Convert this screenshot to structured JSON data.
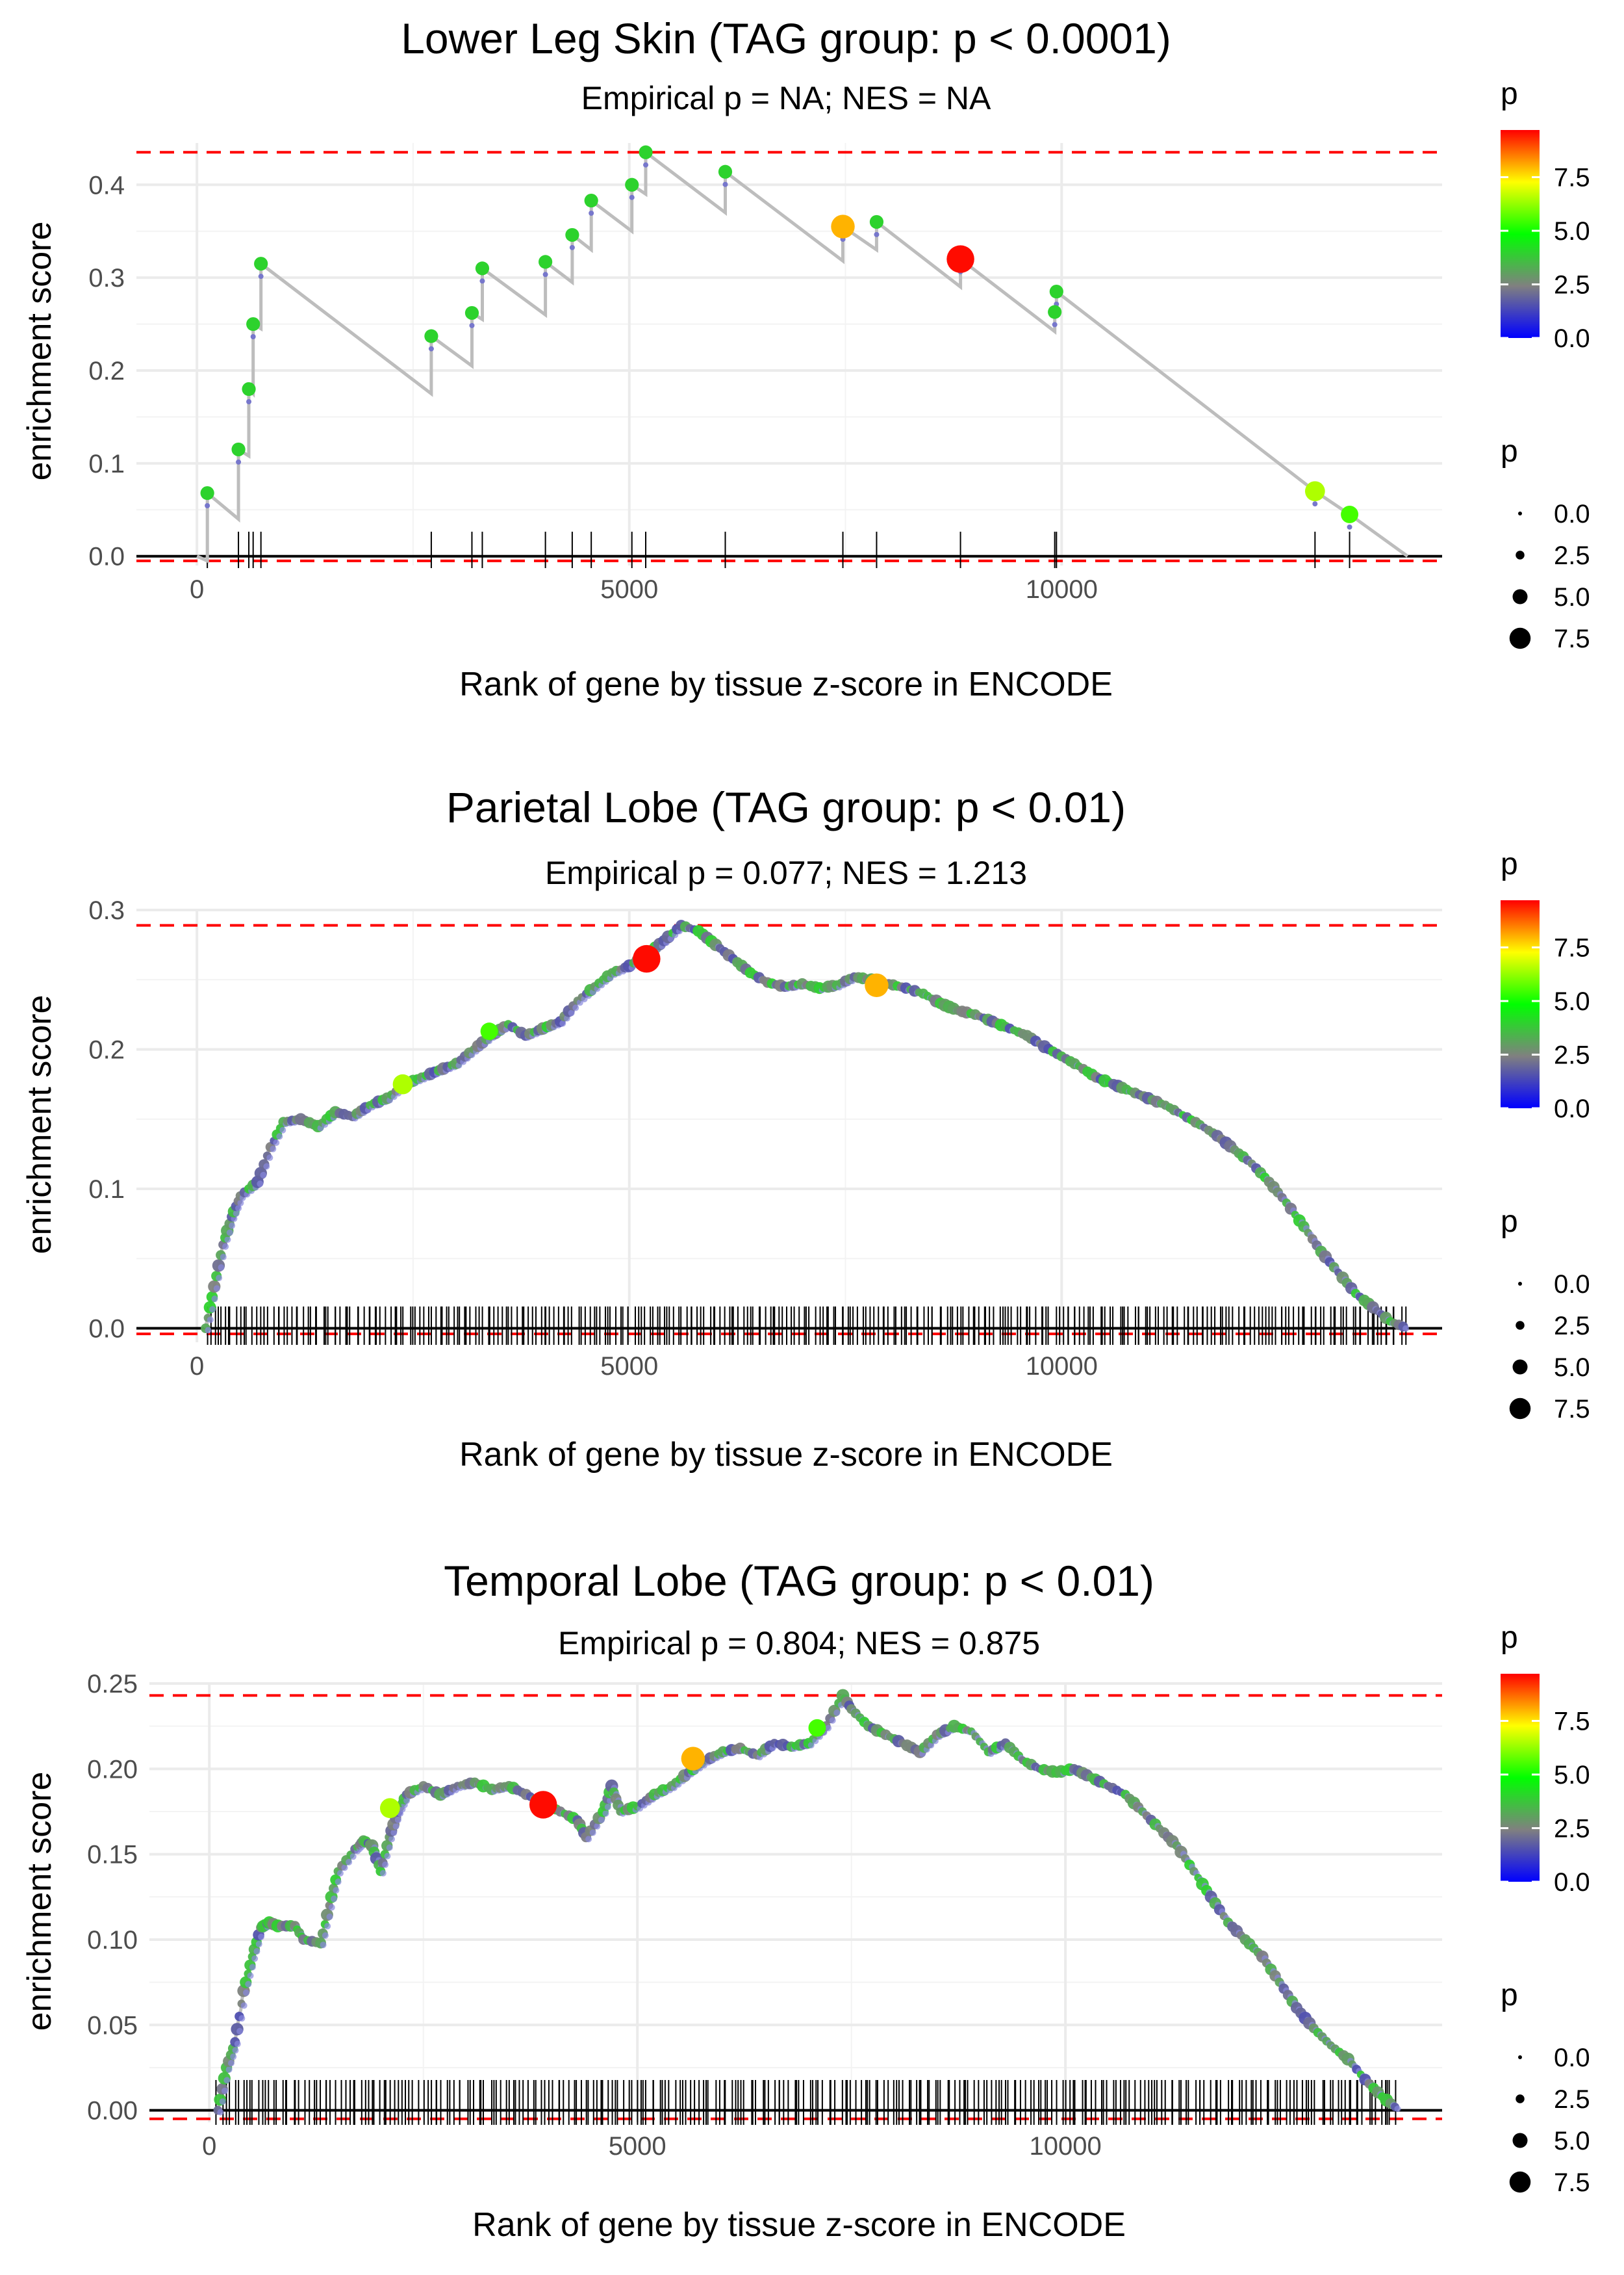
{
  "colors": {
    "grid": "#ebebeb",
    "axis_text": "#4d4d4d",
    "title": "#000000",
    "line": "#bdbdbd",
    "ref_line": "#ff0000",
    "rug": "#000000",
    "gradient_stops": [
      "#0000ff",
      "#808080",
      "#00ff00",
      "#ffff00",
      "#ff0000"
    ]
  },
  "chart_data": [
    {
      "type": "line",
      "title": "Lower Leg Skin (TAG group: p < 0.0001)",
      "subtitle": "Empirical p = NA; NES = NA",
      "xlabel": "Rank of gene by tissue z-score in ENCODE",
      "ylabel": "enrichment score",
      "xlim": [
        -700,
        14400
      ],
      "ylim": [
        -0.01,
        0.445
      ],
      "xticks": [
        0,
        5000,
        10000
      ],
      "xtick_labels": [
        "0",
        "5000",
        "10000"
      ],
      "yticks": [
        0.0,
        0.1,
        0.2,
        0.3,
        0.4
      ],
      "ytick_labels": [
        "0.0",
        "0.1",
        "0.2",
        "0.3",
        "0.4"
      ],
      "max_es": 0.435,
      "min_es": -0.005,
      "es_curve": [
        [
          0,
          0
        ],
        [
          120,
          -0.005
        ],
        [
          120,
          0.068
        ],
        [
          480,
          0.04
        ],
        [
          480,
          0.115
        ],
        [
          600,
          0.108
        ],
        [
          600,
          0.18
        ],
        [
          650,
          0.175
        ],
        [
          650,
          0.25
        ],
        [
          740,
          0.245
        ],
        [
          740,
          0.315
        ],
        [
          2710,
          0.175
        ],
        [
          2710,
          0.237
        ],
        [
          3180,
          0.205
        ],
        [
          3180,
          0.262
        ],
        [
          3300,
          0.255
        ],
        [
          3300,
          0.31
        ],
        [
          4030,
          0.26
        ],
        [
          4030,
          0.317
        ],
        [
          4340,
          0.295
        ],
        [
          4340,
          0.346
        ],
        [
          4560,
          0.33
        ],
        [
          4560,
          0.383
        ],
        [
          5030,
          0.35
        ],
        [
          5030,
          0.4
        ],
        [
          5190,
          0.39
        ],
        [
          5190,
          0.435
        ],
        [
          6110,
          0.37
        ],
        [
          6110,
          0.414
        ],
        [
          7470,
          0.318
        ],
        [
          7470,
          0.355
        ],
        [
          7860,
          0.33
        ],
        [
          7860,
          0.36
        ],
        [
          8830,
          0.29
        ],
        [
          8830,
          0.32
        ],
        [
          9920,
          0.242
        ],
        [
          9920,
          0.263
        ],
        [
          9940,
          0.262
        ],
        [
          9940,
          0.285
        ],
        [
          12930,
          0.07
        ],
        [
          12930,
          0.07
        ],
        [
          13330,
          0.045
        ],
        [
          14000,
          0
        ]
      ],
      "hits": [
        {
          "x": 120,
          "y": 0.068,
          "p": 4.0
        },
        {
          "x": 480,
          "y": 0.115,
          "p": 4.0
        },
        {
          "x": 600,
          "y": 0.18,
          "p": 4.0
        },
        {
          "x": 650,
          "y": 0.25,
          "p": 4.0
        },
        {
          "x": 740,
          "y": 0.315,
          "p": 4.0
        },
        {
          "x": 2710,
          "y": 0.237,
          "p": 4.0
        },
        {
          "x": 3180,
          "y": 0.262,
          "p": 4.0
        },
        {
          "x": 3300,
          "y": 0.31,
          "p": 4.0
        },
        {
          "x": 4030,
          "y": 0.317,
          "p": 4.0
        },
        {
          "x": 4340,
          "y": 0.346,
          "p": 4.0
        },
        {
          "x": 4560,
          "y": 0.383,
          "p": 4.0
        },
        {
          "x": 5030,
          "y": 0.4,
          "p": 4.0
        },
        {
          "x": 5190,
          "y": 0.435,
          "p": 4.0
        },
        {
          "x": 6110,
          "y": 0.414,
          "p": 4.0
        },
        {
          "x": 7470,
          "y": 0.355,
          "p": 8.0
        },
        {
          "x": 7860,
          "y": 0.36,
          "p": 4.0
        },
        {
          "x": 8830,
          "y": 0.32,
          "p": 9.6
        },
        {
          "x": 9920,
          "y": 0.263,
          "p": 4.0
        },
        {
          "x": 9940,
          "y": 0.285,
          "p": 4.0
        },
        {
          "x": 12930,
          "y": 0.07,
          "p": 6.5
        },
        {
          "x": 13330,
          "y": 0.045,
          "p": 5.5
        }
      ],
      "legend_color": {
        "title": "p",
        "ticks": [
          0.0,
          2.5,
          5.0,
          7.5
        ],
        "tick_labels": [
          "0.0",
          "2.5",
          "5.0",
          "7.5"
        ],
        "range": [
          0,
          9.7
        ]
      },
      "legend_size": {
        "title": "p",
        "values": [
          0.0,
          2.5,
          5.0,
          7.5
        ],
        "labels": [
          "0.0",
          "2.5",
          "5.0",
          "7.5"
        ]
      }
    },
    {
      "type": "line",
      "title": "Parietal Lobe (TAG group: p < 0.01)",
      "subtitle": "Empirical p = 0.077; NES = 1.213",
      "xlabel": "Rank of gene by tissue z-score in ENCODE",
      "ylabel": "enrichment score",
      "xlim": [
        -700,
        14400
      ],
      "ylim": [
        -0.01,
        0.3
      ],
      "xticks": [
        0,
        5000,
        10000
      ],
      "xtick_labels": [
        "0",
        "5000",
        "10000"
      ],
      "yticks": [
        0.0,
        0.1,
        0.2,
        0.3
      ],
      "ytick_labels": [
        "0.0",
        "0.1",
        "0.2",
        "0.3"
      ],
      "max_es": 0.289,
      "min_es": -0.004,
      "curve": [
        [
          100,
          0
        ],
        [
          200,
          0.03
        ],
        [
          300,
          0.06
        ],
        [
          400,
          0.08
        ],
        [
          500,
          0.095
        ],
        [
          700,
          0.105
        ],
        [
          850,
          0.13
        ],
        [
          1000,
          0.148
        ],
        [
          1200,
          0.15
        ],
        [
          1400,
          0.145
        ],
        [
          1600,
          0.155
        ],
        [
          1800,
          0.152
        ],
        [
          2000,
          0.16
        ],
        [
          2200,
          0.165
        ],
        [
          2400,
          0.175
        ],
        [
          2600,
          0.18
        ],
        [
          2800,
          0.185
        ],
        [
          3000,
          0.19
        ],
        [
          3200,
          0.2
        ],
        [
          3400,
          0.21
        ],
        [
          3600,
          0.218
        ],
        [
          3800,
          0.21
        ],
        [
          4000,
          0.215
        ],
        [
          4200,
          0.22
        ],
        [
          4400,
          0.235
        ],
        [
          4600,
          0.245
        ],
        [
          4800,
          0.255
        ],
        [
          5000,
          0.26
        ],
        [
          5200,
          0.268
        ],
        [
          5400,
          0.278
        ],
        [
          5600,
          0.289
        ],
        [
          5800,
          0.285
        ],
        [
          6000,
          0.275
        ],
        [
          6200,
          0.265
        ],
        [
          6400,
          0.255
        ],
        [
          6600,
          0.248
        ],
        [
          6800,
          0.245
        ],
        [
          7000,
          0.247
        ],
        [
          7200,
          0.244
        ],
        [
          7400,
          0.246
        ],
        [
          7600,
          0.252
        ],
        [
          7800,
          0.25
        ],
        [
          8000,
          0.247
        ],
        [
          8200,
          0.244
        ],
        [
          8400,
          0.24
        ],
        [
          8600,
          0.233
        ],
        [
          8800,
          0.228
        ],
        [
          9000,
          0.225
        ],
        [
          9200,
          0.22
        ],
        [
          9400,
          0.215
        ],
        [
          9600,
          0.21
        ],
        [
          9800,
          0.202
        ],
        [
          10000,
          0.195
        ],
        [
          10200,
          0.188
        ],
        [
          10400,
          0.18
        ],
        [
          10600,
          0.175
        ],
        [
          10800,
          0.17
        ],
        [
          11000,
          0.165
        ],
        [
          11200,
          0.16
        ],
        [
          11400,
          0.153
        ],
        [
          11600,
          0.146
        ],
        [
          11800,
          0.138
        ],
        [
          12000,
          0.128
        ],
        [
          12200,
          0.118
        ],
        [
          12400,
          0.105
        ],
        [
          12600,
          0.09
        ],
        [
          12800,
          0.073
        ],
        [
          13000,
          0.055
        ],
        [
          13200,
          0.04
        ],
        [
          13400,
          0.025
        ],
        [
          13600,
          0.015
        ],
        [
          13800,
          0.005
        ],
        [
          14000,
          0
        ]
      ],
      "hits": [
        {
          "x": 5200,
          "y": 0.265,
          "p": 9.6
        },
        {
          "x": 7860,
          "y": 0.246,
          "p": 8.0
        },
        {
          "x": 2380,
          "y": 0.175,
          "p": 6.5
        },
        {
          "x": 3380,
          "y": 0.213,
          "p": 5.5
        }
      ],
      "rug_count": 320,
      "legend_color": {
        "title": "p",
        "ticks": [
          0.0,
          2.5,
          5.0,
          7.5
        ],
        "tick_labels": [
          "0.0",
          "2.5",
          "5.0",
          "7.5"
        ],
        "range": [
          0,
          9.7
        ]
      },
      "legend_size": {
        "title": "p",
        "values": [
          0.0,
          2.5,
          5.0,
          7.5
        ],
        "labels": [
          "0.0",
          "2.5",
          "5.0",
          "7.5"
        ]
      }
    },
    {
      "type": "line",
      "title": "Temporal Lobe (TAG group: p < 0.01)",
      "subtitle": "Empirical p = 0.804; NES = 0.875",
      "xlabel": "Rank of gene by tissue z-score in ENCODE",
      "ylabel": "enrichment score",
      "xlim": [
        -700,
        14400
      ],
      "ylim": [
        -0.007,
        0.25
      ],
      "xticks": [
        0,
        5000,
        10000
      ],
      "xtick_labels": [
        "0",
        "5000",
        "10000"
      ],
      "yticks": [
        0.0,
        0.05,
        0.1,
        0.15,
        0.2,
        0.25
      ],
      "ytick_labels": [
        "0.00",
        "0.05",
        "0.10",
        "0.15",
        "0.20",
        "0.25"
      ],
      "max_es": 0.243,
      "min_es": -0.005,
      "curve": [
        [
          100,
          0
        ],
        [
          200,
          0.025
        ],
        [
          300,
          0.04
        ],
        [
          400,
          0.07
        ],
        [
          500,
          0.09
        ],
        [
          600,
          0.107
        ],
        [
          700,
          0.11
        ],
        [
          800,
          0.108
        ],
        [
          1000,
          0.108
        ],
        [
          1100,
          0.1
        ],
        [
          1300,
          0.098
        ],
        [
          1400,
          0.12
        ],
        [
          1500,
          0.14
        ],
        [
          1700,
          0.153
        ],
        [
          1800,
          0.158
        ],
        [
          1900,
          0.155
        ],
        [
          2000,
          0.14
        ],
        [
          2100,
          0.16
        ],
        [
          2200,
          0.175
        ],
        [
          2300,
          0.185
        ],
        [
          2500,
          0.19
        ],
        [
          2700,
          0.185
        ],
        [
          2900,
          0.19
        ],
        [
          3100,
          0.192
        ],
        [
          3300,
          0.188
        ],
        [
          3500,
          0.19
        ],
        [
          3700,
          0.185
        ],
        [
          3900,
          0.18
        ],
        [
          4100,
          0.175
        ],
        [
          4300,
          0.17
        ],
        [
          4400,
          0.16
        ],
        [
          4600,
          0.175
        ],
        [
          4700,
          0.19
        ],
        [
          4800,
          0.175
        ],
        [
          5000,
          0.178
        ],
        [
          5200,
          0.185
        ],
        [
          5400,
          0.19
        ],
        [
          5600,
          0.198
        ],
        [
          5800,
          0.205
        ],
        [
          6000,
          0.21
        ],
        [
          6200,
          0.212
        ],
        [
          6400,
          0.208
        ],
        [
          6600,
          0.215
        ],
        [
          6800,
          0.213
        ],
        [
          7000,
          0.215
        ],
        [
          7200,
          0.225
        ],
        [
          7400,
          0.243
        ],
        [
          7500,
          0.235
        ],
        [
          7700,
          0.225
        ],
        [
          7900,
          0.22
        ],
        [
          8100,
          0.215
        ],
        [
          8300,
          0.21
        ],
        [
          8500,
          0.22
        ],
        [
          8700,
          0.225
        ],
        [
          8900,
          0.222
        ],
        [
          9100,
          0.21
        ],
        [
          9300,
          0.215
        ],
        [
          9500,
          0.205
        ],
        [
          9700,
          0.2
        ],
        [
          9900,
          0.198
        ],
        [
          10100,
          0.2
        ],
        [
          10300,
          0.195
        ],
        [
          10500,
          0.19
        ],
        [
          10700,
          0.185
        ],
        [
          10900,
          0.175
        ],
        [
          11100,
          0.165
        ],
        [
          11300,
          0.155
        ],
        [
          11500,
          0.14
        ],
        [
          11700,
          0.125
        ],
        [
          11900,
          0.11
        ],
        [
          12100,
          0.1
        ],
        [
          12300,
          0.09
        ],
        [
          12500,
          0.075
        ],
        [
          12700,
          0.06
        ],
        [
          12900,
          0.048
        ],
        [
          13100,
          0.038
        ],
        [
          13300,
          0.03
        ],
        [
          13500,
          0.018
        ],
        [
          13700,
          0.008
        ],
        [
          13900,
          0
        ]
      ],
      "hits": [
        {
          "x": 3900,
          "y": 0.179,
          "p": 9.6
        },
        {
          "x": 5650,
          "y": 0.206,
          "p": 8.0
        },
        {
          "x": 2110,
          "y": 0.177,
          "p": 6.5
        },
        {
          "x": 7100,
          "y": 0.224,
          "p": 5.5
        }
      ],
      "rug_count": 300,
      "legend_color": {
        "title": "p",
        "ticks": [
          0.0,
          2.5,
          5.0,
          7.5
        ],
        "tick_labels": [
          "0.0",
          "2.5",
          "5.0",
          "7.5"
        ],
        "range": [
          0,
          9.7
        ]
      },
      "legend_size": {
        "title": "p",
        "values": [
          0.0,
          2.5,
          5.0,
          7.5
        ],
        "labels": [
          "0.0",
          "2.5",
          "5.0",
          "7.5"
        ]
      }
    }
  ]
}
